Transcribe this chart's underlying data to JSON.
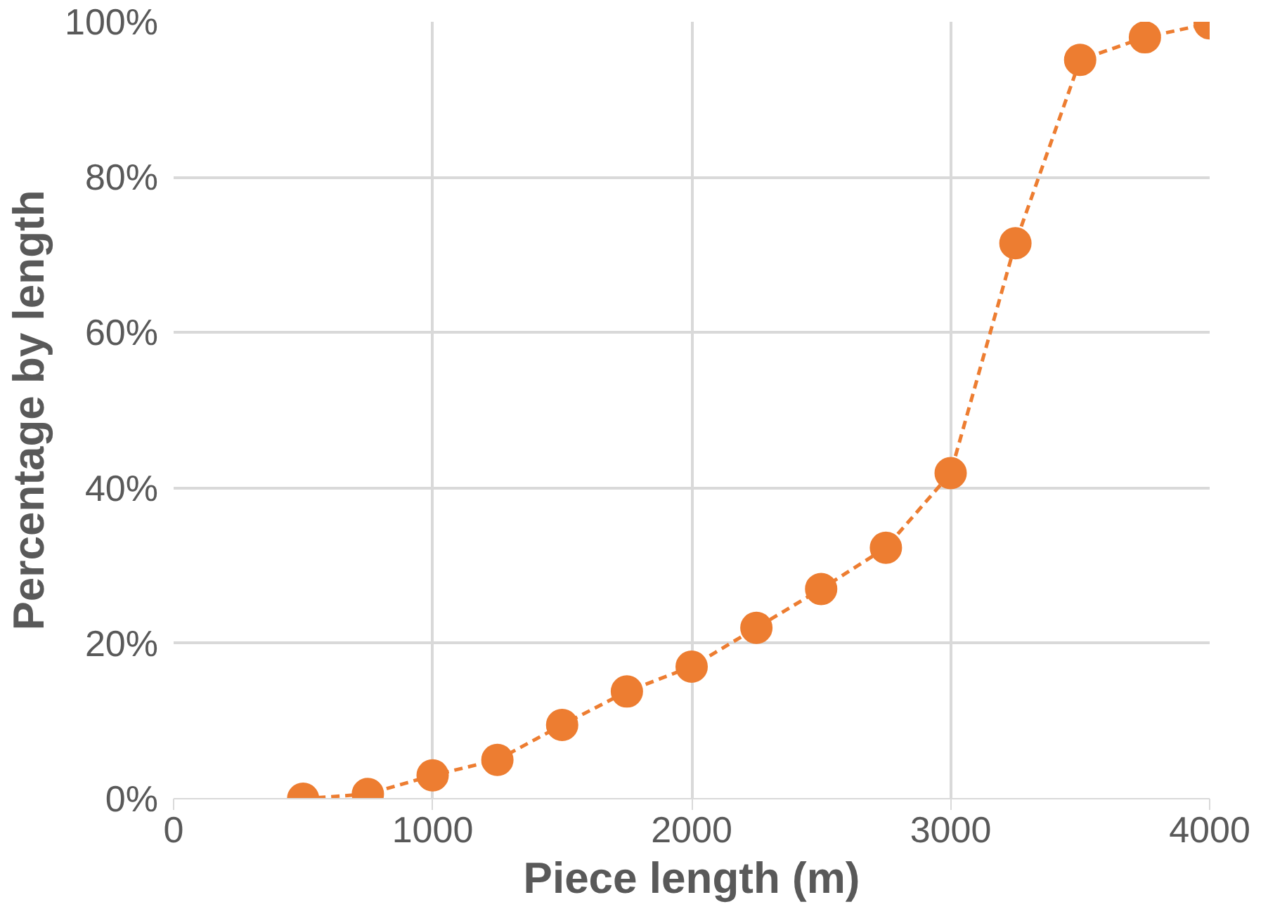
{
  "chart_data": {
    "type": "line",
    "xlabel": "Piece length (m)",
    "ylabel": "Percentage by length",
    "x": [
      500,
      750,
      1000,
      1250,
      1500,
      1750,
      2000,
      2250,
      2500,
      2750,
      3000,
      3250,
      3500,
      3750,
      4000
    ],
    "series": [
      {
        "color": "#ed7d31",
        "values": [
          0,
          0.6,
          3,
          5,
          9.5,
          13.8,
          17,
          22,
          27,
          32.3,
          41.9,
          71.5,
          95.1,
          98,
          99.8
        ]
      }
    ],
    "xlim": [
      0,
      4000
    ],
    "xticks": [
      0,
      1000,
      2000,
      3000,
      4000
    ],
    "ylim": [
      0,
      100
    ],
    "yticks": [
      {
        "value": 0,
        "label": "0%"
      },
      {
        "value": 20,
        "label": "20%"
      },
      {
        "value": 40,
        "label": "40%"
      },
      {
        "value": 60,
        "label": "60%"
      },
      {
        "value": 80,
        "label": "80%"
      },
      {
        "value": 100,
        "label": "100%"
      }
    ],
    "grid": true,
    "marker": "circle",
    "line_style": "dashed"
  }
}
